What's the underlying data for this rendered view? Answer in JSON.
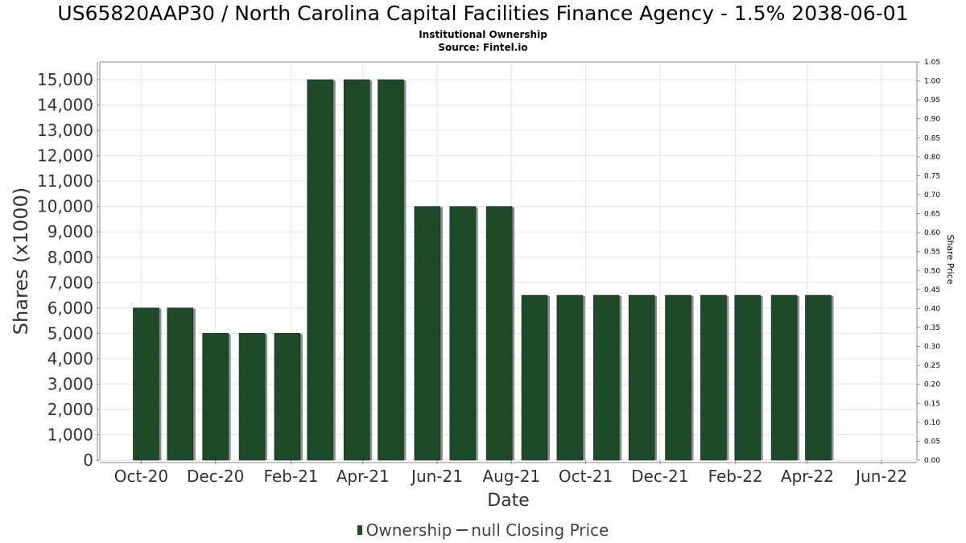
{
  "chart_data": {
    "type": "bar",
    "title": "US65820AAP30 / North Carolina Capital Facilities Finance Agency - 1.5% 2038-06-01",
    "subtitle": "Institutional Ownership",
    "source": "Source: Fintel.io",
    "xlabel": "Date",
    "ylabel": "Shares (x1000)",
    "y2label": "Share Price",
    "ylim": [
      0,
      15700
    ],
    "y2lim": [
      0,
      1.05
    ],
    "xlim": [
      "2020-08-28",
      "2022-06-30"
    ],
    "yticks": [
      "0",
      "1,000",
      "2,000",
      "3,000",
      "4,000",
      "5,000",
      "6,000",
      "7,000",
      "8,000",
      "9,000",
      "10,000",
      "11,000",
      "12,000",
      "13,000",
      "14,000",
      "15,000"
    ],
    "y2ticks": [
      "0.00",
      "0.05",
      "0.10",
      "0.15",
      "0.20",
      "0.25",
      "0.30",
      "0.35",
      "0.40",
      "0.45",
      "0.50",
      "0.55",
      "0.60",
      "0.65",
      "0.70",
      "0.75",
      "0.80",
      "0.85",
      "0.90",
      "0.95",
      "1.00",
      "1.05"
    ],
    "xticks": [
      {
        "label": "Oct-20",
        "date": "2020-10-01"
      },
      {
        "label": "Dec-20",
        "date": "2020-12-01"
      },
      {
        "label": "Feb-21",
        "date": "2021-02-01"
      },
      {
        "label": "Apr-21",
        "date": "2021-04-01"
      },
      {
        "label": "Jun-21",
        "date": "2021-06-01"
      },
      {
        "label": "Aug-21",
        "date": "2021-08-01"
      },
      {
        "label": "Oct-21",
        "date": "2021-10-01"
      },
      {
        "label": "Dec-21",
        "date": "2021-12-01"
      },
      {
        "label": "Feb-22",
        "date": "2022-02-01"
      },
      {
        "label": "Apr-22",
        "date": "2022-04-01"
      },
      {
        "label": "Jun-22",
        "date": "2022-06-01"
      }
    ],
    "series": [
      {
        "name": "Ownership",
        "color": "#1d4a27",
        "points": [
          {
            "date": "2020-10-05",
            "value": 6000
          },
          {
            "date": "2020-11-02",
            "value": 6000
          },
          {
            "date": "2020-12-01",
            "value": 5000
          },
          {
            "date": "2020-12-31",
            "value": 5000
          },
          {
            "date": "2021-01-29",
            "value": 5000
          },
          {
            "date": "2021-02-25",
            "value": 15000
          },
          {
            "date": "2021-03-27",
            "value": 15000
          },
          {
            "date": "2021-04-24",
            "value": 15000
          },
          {
            "date": "2021-05-24",
            "value": 10000
          },
          {
            "date": "2021-06-22",
            "value": 10000
          },
          {
            "date": "2021-07-22",
            "value": 10000
          },
          {
            "date": "2021-08-20",
            "value": 6500
          },
          {
            "date": "2021-09-18",
            "value": 6500
          },
          {
            "date": "2021-10-18",
            "value": 6500
          },
          {
            "date": "2021-11-16",
            "value": 6500
          },
          {
            "date": "2021-12-16",
            "value": 6500
          },
          {
            "date": "2022-01-14",
            "value": 6500
          },
          {
            "date": "2022-02-11",
            "value": 6500
          },
          {
            "date": "2022-03-13",
            "value": 6500
          },
          {
            "date": "2022-04-10",
            "value": 6500
          }
        ]
      }
    ],
    "legend": [
      {
        "label": "Ownership",
        "kind": "bar"
      },
      {
        "label": "null Closing Price",
        "kind": "line"
      }
    ],
    "grid": true,
    "legend_position": "bottom"
  }
}
